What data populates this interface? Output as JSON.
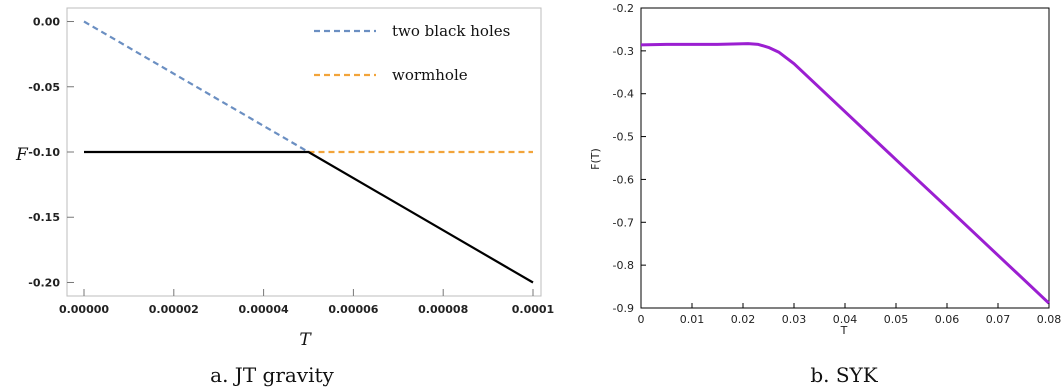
{
  "chart_data": [
    {
      "type": "line",
      "caption": "a. JT gravity",
      "xlabel": "T",
      "ylabel": "F",
      "xlim": [
        0,
        0.0001
      ],
      "ylim": [
        -0.205,
        0.005
      ],
      "xticks": [
        "0.00000",
        "0.00002",
        "0.00004",
        "0.00006",
        "0.00008",
        "0.0001"
      ],
      "xtick_values": [
        0,
        2e-05,
        4e-05,
        6e-05,
        8e-05,
        0.0001
      ],
      "yticks": [
        "0.00",
        "-0.05",
        "-0.10",
        "-0.15",
        "-0.20"
      ],
      "ytick_values": [
        0,
        -0.05,
        -0.1,
        -0.15,
        -0.2
      ],
      "grid": false,
      "legend_position": "top-right",
      "legend": [
        {
          "label": "two black holes",
          "color": "#6B8FC2",
          "style": "dashed"
        },
        {
          "label": "wormhole",
          "color": "#F2A43A",
          "style": "dashed"
        }
      ],
      "series": [
        {
          "name": "two black holes",
          "color": "#6B8FC2",
          "style": "dashed",
          "x": [
            0,
            5e-05
          ],
          "y": [
            0,
            -0.1
          ]
        },
        {
          "name": "wormhole",
          "color": "#F2A43A",
          "style": "dashed",
          "x": [
            5e-05,
            0.0001
          ],
          "y": [
            -0.1,
            -0.1
          ]
        },
        {
          "color": "#000000",
          "style": "solid",
          "x": [
            0,
            5e-05,
            0.0001
          ],
          "y": [
            -0.1,
            -0.1,
            -0.2
          ]
        }
      ]
    },
    {
      "type": "line",
      "caption": "b. SYK",
      "xlabel": "T",
      "ylabel": "F(T)",
      "xlim": [
        0,
        0.08
      ],
      "ylim": [
        -0.9,
        -0.2
      ],
      "xticks": [
        "0",
        "0.01",
        "0.02",
        "0.03",
        "0.04",
        "0.05",
        "0.06",
        "0.07",
        "0.08"
      ],
      "xtick_values": [
        0,
        0.01,
        0.02,
        0.03,
        0.04,
        0.05,
        0.06,
        0.07,
        0.08
      ],
      "yticks": [
        "-0.2",
        "-0.3",
        "-0.4",
        "-0.5",
        "-0.6",
        "-0.7",
        "-0.8",
        "-0.9"
      ],
      "ytick_values": [
        -0.2,
        -0.3,
        -0.4,
        -0.5,
        -0.6,
        -0.7,
        -0.8,
        -0.9
      ],
      "grid": false,
      "series": [
        {
          "color": "#9B1FD1",
          "style": "solid",
          "x": [
            0,
            0.005,
            0.01,
            0.015,
            0.018,
            0.021,
            0.023,
            0.025,
            0.027,
            0.03,
            0.04,
            0.05,
            0.06,
            0.07,
            0.08
          ],
          "y": [
            -0.286,
            -0.285,
            -0.285,
            -0.285,
            -0.284,
            -0.283,
            -0.285,
            -0.292,
            -0.303,
            -0.33,
            -0.442,
            -0.554,
            -0.665,
            -0.777,
            -0.889
          ]
        }
      ]
    }
  ]
}
